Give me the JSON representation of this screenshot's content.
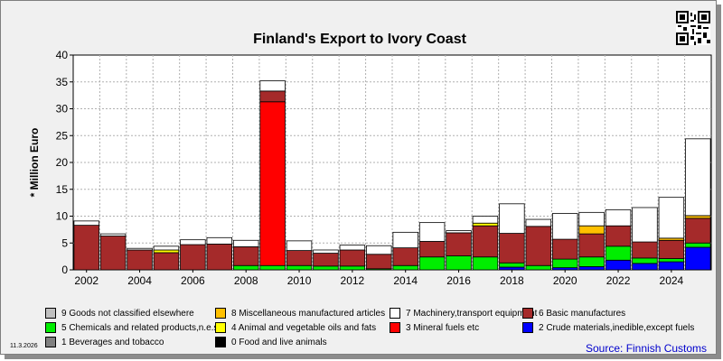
{
  "chart_data": {
    "type": "bar",
    "stacked": true,
    "title": "Finland's Export to Ivory Coast",
    "ylabel": "* Million Euro",
    "xlabel": "",
    "ylim": [
      0,
      40
    ],
    "yticks": [
      0,
      5,
      10,
      15,
      20,
      25,
      30,
      35,
      40
    ],
    "xtick_labels": [
      "2002",
      "2004",
      "2006",
      "2008",
      "2010",
      "2012",
      "2014",
      "2016",
      "2018",
      "2020",
      "2022",
      "2024"
    ],
    "grid": true,
    "categories": [
      "2002",
      "2003",
      "2004",
      "2005",
      "2006",
      "2007",
      "2008",
      "2009",
      "2010",
      "2011",
      "2012",
      "2013",
      "2014",
      "2015",
      "2016",
      "2017",
      "2018",
      "2019",
      "2020",
      "2021",
      "2022",
      "2023",
      "2024",
      "2025"
    ],
    "series": [
      {
        "code": "0",
        "name": "0 Food and live animals",
        "color": "#000000",
        "values": [
          0,
          0,
          0,
          0,
          0,
          0,
          0,
          0,
          0,
          0,
          0,
          0,
          0,
          0,
          0,
          0,
          0,
          0,
          0,
          0,
          0,
          0,
          0,
          0
        ]
      },
      {
        "code": "1",
        "name": "1 Beverages and tobacco",
        "color": "#808080",
        "values": [
          0,
          0,
          0,
          0,
          0,
          0,
          0,
          0,
          0,
          0,
          0,
          0,
          0,
          0,
          0,
          0,
          0,
          0,
          0,
          0,
          0,
          0,
          0,
          0
        ]
      },
      {
        "code": "2",
        "name": "2 Crude materials,inedible,except fuels",
        "color": "#0000ff",
        "values": [
          0,
          0,
          0,
          0,
          0,
          0,
          0,
          0,
          0,
          0,
          0,
          0,
          0,
          0,
          0,
          0,
          0.5,
          0,
          0.4,
          0.6,
          1.8,
          1.2,
          1.5,
          4.2
        ]
      },
      {
        "code": "5",
        "name": "5 Chemicals and related products,n.e.s.",
        "color": "#00ee00",
        "values": [
          0,
          0,
          0,
          0,
          0,
          0,
          0.8,
          0.8,
          0.8,
          0.7,
          0.7,
          0.2,
          0.8,
          2.4,
          2.6,
          2.4,
          0.8,
          0.8,
          1.6,
          1.8,
          2.6,
          1.0,
          0.6,
          0.8
        ]
      },
      {
        "code": "3",
        "name": "3 Mineral fuels etc",
        "color": "#ff0000",
        "values": [
          0,
          0,
          0,
          0,
          0,
          0,
          0,
          30.5,
          0,
          0,
          0,
          0,
          0,
          0,
          0,
          0,
          0,
          0,
          0,
          0,
          0,
          0,
          0,
          0
        ]
      },
      {
        "code": "6",
        "name": "6 Basic manufactures",
        "color": "#a52a2a",
        "values": [
          8.3,
          6.3,
          3.7,
          3.2,
          4.7,
          4.8,
          3.5,
          2.0,
          2.8,
          2.4,
          3.0,
          2.7,
          3.3,
          2.9,
          4.3,
          5.8,
          5.5,
          7.3,
          3.7,
          4.3,
          3.8,
          3.0,
          3.4,
          4.6
        ]
      },
      {
        "code": "4",
        "name": "4 Animal and vegetable oils and fats",
        "color": "#ffff00",
        "values": [
          0,
          0,
          0,
          0.5,
          0,
          0,
          0,
          0,
          0,
          0,
          0,
          0,
          0,
          0,
          0,
          0.5,
          0,
          0,
          0,
          0,
          0,
          0,
          0,
          0
        ]
      },
      {
        "code": "8",
        "name": "8 Miscellaneous manufactured articles",
        "color": "#ffc000",
        "values": [
          0,
          0,
          0,
          0,
          0,
          0,
          0,
          0,
          0,
          0,
          0,
          0,
          0,
          0,
          0,
          0,
          0,
          0,
          0,
          1.5,
          0,
          0,
          0.4,
          0.5
        ]
      },
      {
        "code": "7",
        "name": "7 Machinery,transport equipment",
        "color": "#ffffff",
        "values": [
          0.8,
          0.4,
          0.3,
          0.7,
          0.9,
          1.2,
          1.2,
          1.9,
          1.8,
          0.6,
          0.9,
          1.6,
          2.9,
          3.5,
          0.4,
          1.3,
          5.5,
          1.3,
          4.8,
          2.5,
          3.0,
          6.4,
          7.6,
          14.3
        ]
      },
      {
        "code": "9",
        "name": "9 Goods not classified elsewhere",
        "color": "#c0c0c0",
        "values": [
          0,
          0,
          0,
          0,
          0,
          0,
          0,
          0,
          0,
          0,
          0,
          0,
          0,
          0,
          0,
          0,
          0,
          0,
          0,
          0,
          0,
          0,
          0,
          0
        ]
      }
    ],
    "legend_position": "bottom"
  },
  "legend": [
    {
      "code": "9",
      "label": "9 Goods not classified elsewhere",
      "color": "#c0c0c0"
    },
    {
      "code": "8",
      "label": "8 Miscellaneous manufactured articles",
      "color": "#ffc000"
    },
    {
      "code": "7",
      "label": "7 Machinery,transport equipment",
      "color": "#ffffff"
    },
    {
      "code": "6",
      "label": "6 Basic manufactures",
      "color": "#a52a2a"
    },
    {
      "code": "5",
      "label": "5 Chemicals and related products,n.e.s.",
      "color": "#00ee00"
    },
    {
      "code": "4",
      "label": "4 Animal and vegetable oils and fats",
      "color": "#ffff00"
    },
    {
      "code": "3",
      "label": "3 Mineral fuels etc",
      "color": "#ff0000"
    },
    {
      "code": "2",
      "label": "2 Crude materials,inedible,except fuels",
      "color": "#0000ff"
    },
    {
      "code": "1",
      "label": "1 Beverages and tobacco",
      "color": "#808080"
    },
    {
      "code": "0",
      "label": "0 Food and live animals",
      "color": "#000000"
    }
  ],
  "source": "Source: Finnish Customs",
  "date": "11.3.2026"
}
